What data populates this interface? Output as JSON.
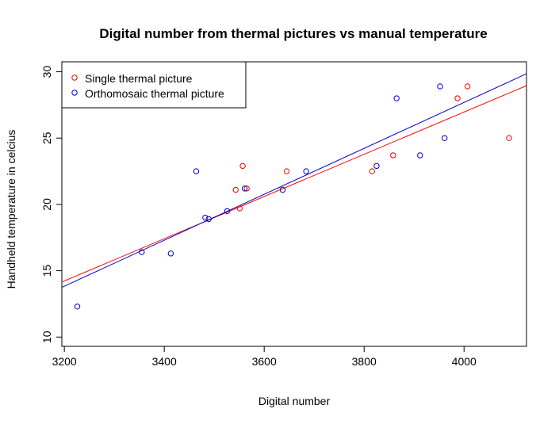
{
  "chart_data": {
    "type": "scatter",
    "title": "Digital number from thermal pictures vs manual temperature",
    "xlabel": "Digital number",
    "ylabel": "Handheld temperature in celcius",
    "xlim": [
      3195,
      4125
    ],
    "ylim": [
      9.3,
      30.75
    ],
    "x_ticks": [
      3200,
      3400,
      3600,
      3800,
      4000
    ],
    "y_ticks": [
      10,
      15,
      20,
      25,
      30
    ],
    "grid": false,
    "legend_position": "top-left",
    "series": [
      {
        "name": "Single thermal picture",
        "color": "#ff0000",
        "marker": "open-circle",
        "points": [
          {
            "x": 3543,
            "y": 21.1
          },
          {
            "x": 3557,
            "y": 22.9
          },
          {
            "x": 3565,
            "y": 21.2
          },
          {
            "x": 3551,
            "y": 19.7
          },
          {
            "x": 3645,
            "y": 22.5
          },
          {
            "x": 3816,
            "y": 22.5
          },
          {
            "x": 3858,
            "y": 23.7
          },
          {
            "x": 3987,
            "y": 28.0
          },
          {
            "x": 4007,
            "y": 28.9
          },
          {
            "x": 4090,
            "y": 25.0
          }
        ],
        "fit_line": {
          "x": [
            3195,
            4125
          ],
          "y": [
            14.15,
            28.95
          ]
        }
      },
      {
        "name": "Orthomosaic thermal picture",
        "color": "#0000cc",
        "marker": "open-circle",
        "points": [
          {
            "x": 3226,
            "y": 12.3
          },
          {
            "x": 3355,
            "y": 16.4
          },
          {
            "x": 3413,
            "y": 16.3
          },
          {
            "x": 3464,
            "y": 22.5
          },
          {
            "x": 3482,
            "y": 19.0
          },
          {
            "x": 3489,
            "y": 18.9
          },
          {
            "x": 3526,
            "y": 19.5
          },
          {
            "x": 3561,
            "y": 21.2
          },
          {
            "x": 3637,
            "y": 21.1
          },
          {
            "x": 3684,
            "y": 22.5
          },
          {
            "x": 3825,
            "y": 22.9
          },
          {
            "x": 3865,
            "y": 28.0
          },
          {
            "x": 3912,
            "y": 23.7
          },
          {
            "x": 3952,
            "y": 28.9
          },
          {
            "x": 3961,
            "y": 25.0
          }
        ],
        "fit_line": {
          "x": [
            3195,
            4125
          ],
          "y": [
            13.75,
            29.85
          ]
        }
      }
    ]
  }
}
